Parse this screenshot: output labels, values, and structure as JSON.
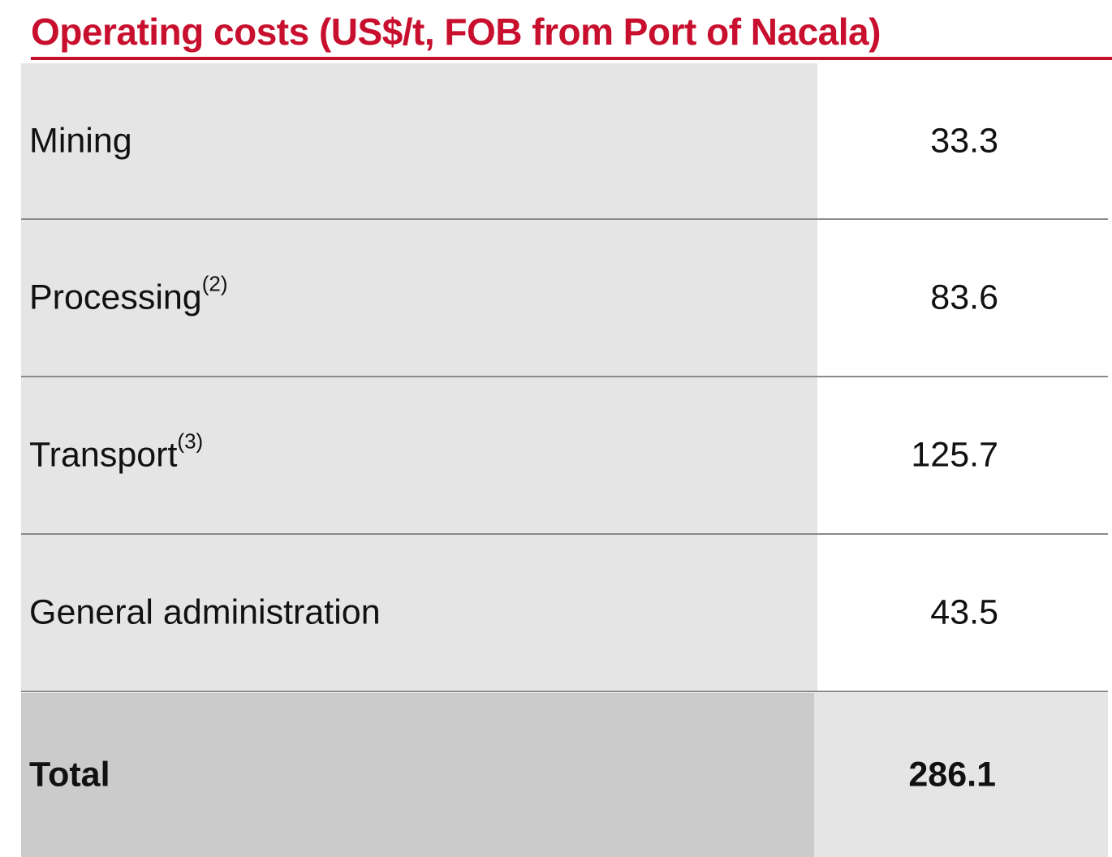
{
  "title": "Operating costs (US$/t, FOB from Port of Nacala)",
  "table": {
    "rows": [
      {
        "label": "Mining",
        "value": 33.3
      },
      {
        "label": "Processing",
        "note": "(2)",
        "value": 83.6
      },
      {
        "label": "Transport",
        "note": "(3)",
        "value": 125.7
      },
      {
        "label": "General administration",
        "value": 43.5
      }
    ],
    "total": {
      "label": "Total",
      "value": 286.1
    }
  }
}
